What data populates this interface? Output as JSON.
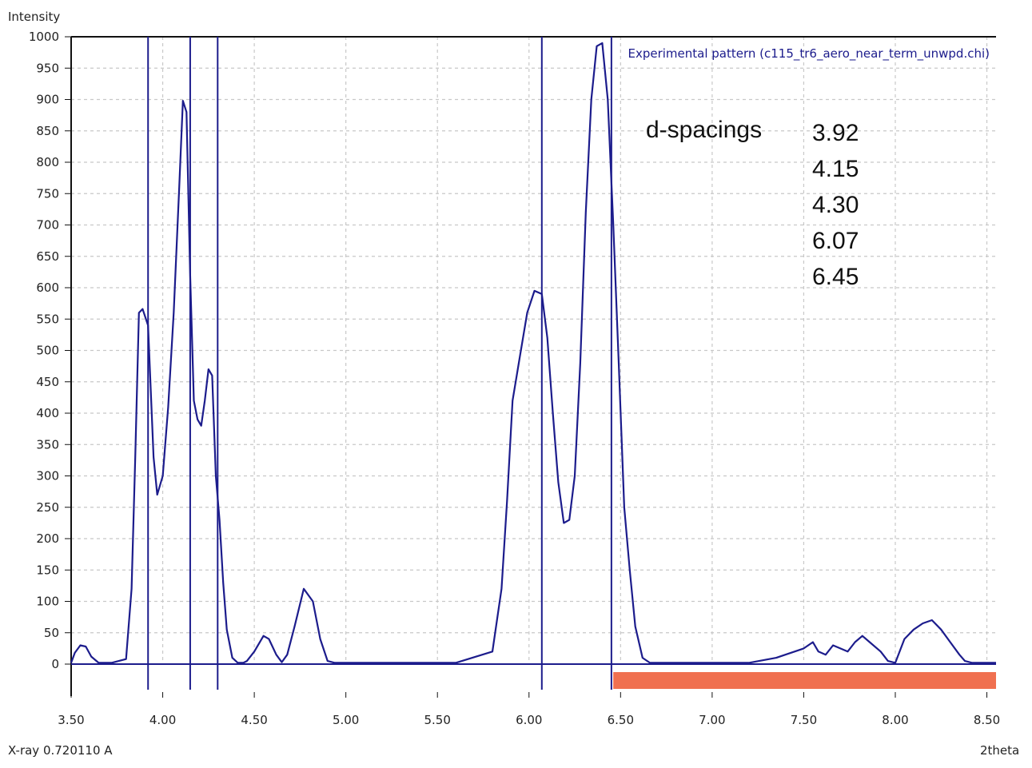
{
  "chart_data": {
    "type": "line",
    "ylabel": "Intensity",
    "xlabel": "2theta",
    "wavelength_label": "X-ray 0.720110 A",
    "legend": "Experimental pattern (c115_tr6_aero_near_term_unwpd.chi)",
    "xlim": [
      3.5,
      8.55
    ],
    "ylim": [
      0,
      1000
    ],
    "x_ticks": [
      3.5,
      4.0,
      4.5,
      5.0,
      5.5,
      6.0,
      6.5,
      7.0,
      7.5,
      8.0,
      8.5
    ],
    "x_tick_labels": [
      "3.50",
      "4.00",
      "4.50",
      "5.00",
      "5.50",
      "6.00",
      "6.50",
      "7.00",
      "7.50",
      "8.00",
      "8.50"
    ],
    "y_ticks": [
      0,
      50,
      100,
      150,
      200,
      250,
      300,
      350,
      400,
      450,
      500,
      550,
      600,
      650,
      700,
      750,
      800,
      850,
      900,
      950,
      1000
    ],
    "y_tick_labels": [
      "0",
      "50",
      "100",
      "150",
      "200",
      "250",
      "300",
      "350",
      "400",
      "450",
      "500",
      "550",
      "600",
      "650",
      "700",
      "750",
      "800",
      "850",
      "900",
      "950",
      "1000"
    ],
    "grid": true,
    "series": [
      {
        "name": "Experimental pattern",
        "color": "#1c1c8c",
        "x": [
          3.5,
          3.52,
          3.55,
          3.58,
          3.61,
          3.65,
          3.72,
          3.8,
          3.83,
          3.85,
          3.87,
          3.89,
          3.92,
          3.95,
          3.97,
          4.0,
          4.03,
          4.06,
          4.09,
          4.11,
          4.13,
          4.15,
          4.17,
          4.19,
          4.21,
          4.23,
          4.25,
          4.27,
          4.29,
          4.31,
          4.33,
          4.35,
          4.38,
          4.41,
          4.44,
          4.46,
          4.5,
          4.55,
          4.58,
          4.62,
          4.65,
          4.68,
          4.72,
          4.77,
          4.82,
          4.86,
          4.9,
          4.94,
          4.97,
          5.0,
          5.2,
          5.4,
          5.6,
          5.8,
          5.85,
          5.88,
          5.91,
          5.95,
          5.99,
          6.03,
          6.07,
          6.1,
          6.13,
          6.16,
          6.19,
          6.22,
          6.25,
          6.28,
          6.31,
          6.34,
          6.37,
          6.4,
          6.43,
          6.46,
          6.49,
          6.52,
          6.55,
          6.58,
          6.62,
          6.66,
          6.7,
          6.74,
          6.8,
          7.0,
          7.2,
          7.35,
          7.4,
          7.45,
          7.5,
          7.55,
          7.58,
          7.62,
          7.66,
          7.7,
          7.74,
          7.78,
          7.82,
          7.86,
          7.92,
          7.96,
          8.0,
          8.05,
          8.1,
          8.15,
          8.2,
          8.25,
          8.3,
          8.35,
          8.38,
          8.42,
          8.46,
          8.55
        ],
        "y": [
          2,
          18,
          30,
          28,
          12,
          2,
          2,
          8,
          120,
          330,
          560,
          566,
          540,
          330,
          270,
          300,
          410,
          560,
          760,
          898,
          880,
          620,
          420,
          390,
          380,
          420,
          470,
          460,
          300,
          230,
          130,
          55,
          10,
          2,
          2,
          5,
          20,
          45,
          40,
          15,
          3,
          15,
          60,
          120,
          100,
          40,
          5,
          2,
          2,
          2,
          2,
          2,
          2,
          20,
          120,
          260,
          420,
          490,
          560,
          595,
          590,
          520,
          400,
          290,
          225,
          230,
          300,
          480,
          720,
          900,
          985,
          990,
          900,
          700,
          480,
          250,
          150,
          60,
          10,
          2,
          2,
          2,
          2,
          2,
          2,
          10,
          15,
          20,
          25,
          35,
          20,
          15,
          30,
          25,
          20,
          35,
          45,
          35,
          20,
          5,
          2,
          40,
          55,
          65,
          70,
          55,
          35,
          15,
          5,
          2,
          2,
          2
        ]
      }
    ],
    "reflections": [
      3.92,
      4.15,
      4.3,
      6.07,
      6.45
    ],
    "excluded_region": [
      6.46,
      8.55
    ],
    "excluded_color": "#f07050",
    "annotation": {
      "title": "d-spacings",
      "values": [
        "3.92",
        "4.15",
        "4.30",
        "6.07",
        "6.45"
      ]
    }
  }
}
